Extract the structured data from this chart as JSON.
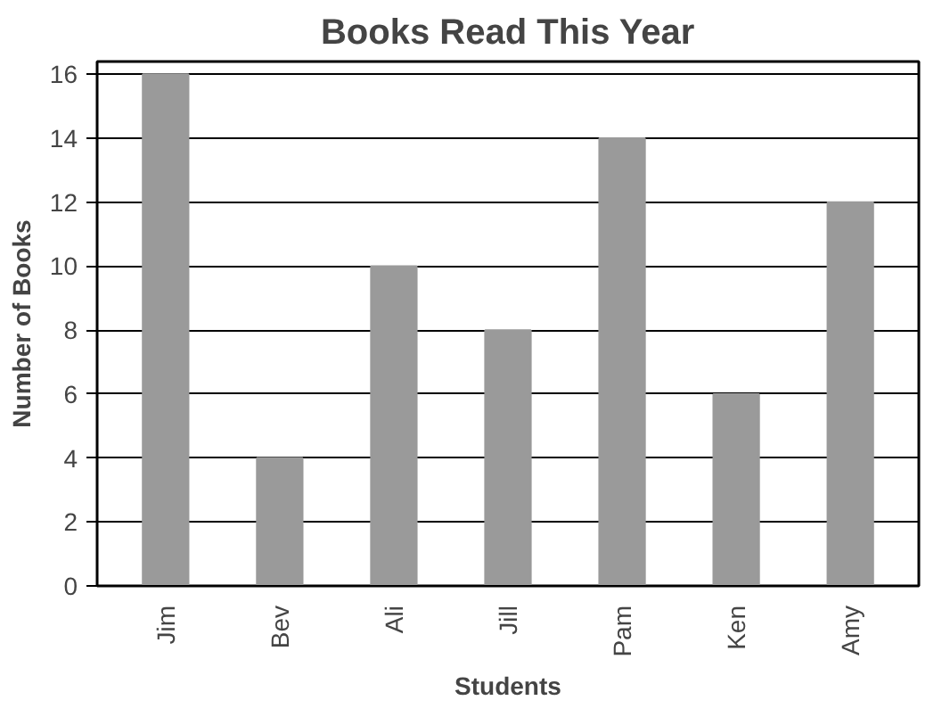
{
  "chart_data": {
    "type": "bar",
    "title": "Books Read This Year",
    "xlabel": "Students",
    "ylabel": "Number of Books",
    "categories": [
      "Jim",
      "Bev",
      "Ali",
      "Jill",
      "Pam",
      "Ken",
      "Amy"
    ],
    "values": [
      16,
      4,
      10,
      8,
      14,
      6,
      12
    ],
    "color": "#9a9a9a",
    "ylim": [
      0,
      16.4
    ],
    "yticks": [
      0,
      2,
      4,
      6,
      8,
      10,
      12,
      14,
      16
    ],
    "grid": "y"
  }
}
